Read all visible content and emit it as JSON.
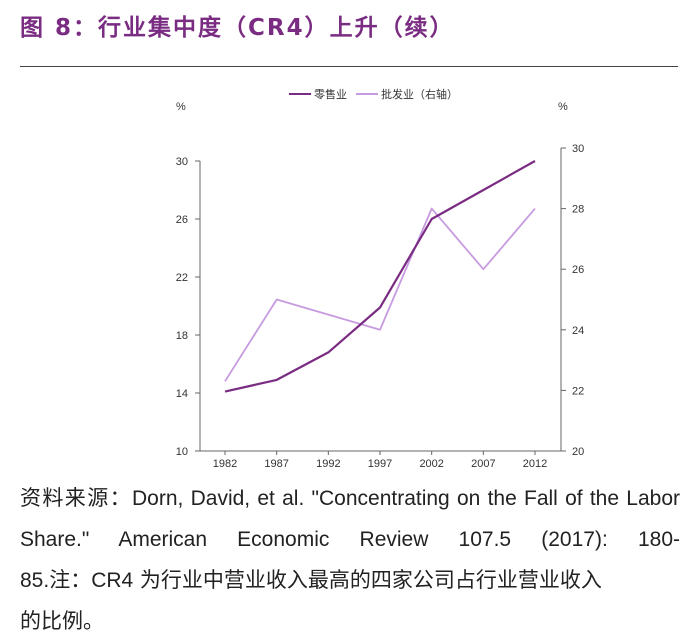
{
  "title": "图 8：行业集中度（CR4）上升（续）",
  "source": {
    "prefix": "资料来源：",
    "citation_line1": "Dorn, David, et al. \"Concentrating on the Fall of the",
    "citation_line2": "Labor Share.\" American Economic Review 107.5 (2017): 180-",
    "citation_line3_pages": "85.",
    "note_prefix": "注：",
    "note_cr4": "CR4",
    "note_text": " 为行业中营业收入最高的四家公司占行业营业收入",
    "note_text_end": "的比例。"
  },
  "chart_data": {
    "type": "line",
    "x": [
      "1982",
      "1987",
      "1992",
      "1997",
      "2002",
      "2007",
      "2012"
    ],
    "left_axis": {
      "unit": "%",
      "ylim": [
        10,
        30
      ],
      "ticks": [
        10,
        14,
        18,
        22,
        26,
        30
      ]
    },
    "right_axis": {
      "unit": "%",
      "ylim": [
        20,
        30
      ],
      "ticks": [
        20,
        22,
        24,
        26,
        28,
        30
      ]
    },
    "grid": false,
    "legend_position": "top",
    "series": [
      {
        "name": "零售业",
        "axis": "left",
        "color": "#7a2c82",
        "values": [
          14.1,
          14.9,
          16.8,
          19.9,
          26.0,
          28.0,
          30.0
        ]
      },
      {
        "name": "批发业（右轴）",
        "axis": "right",
        "color": "#c79be0",
        "values": [
          22.3,
          25.0,
          24.5,
          24.0,
          28.0,
          26.0,
          28.0
        ]
      }
    ]
  }
}
